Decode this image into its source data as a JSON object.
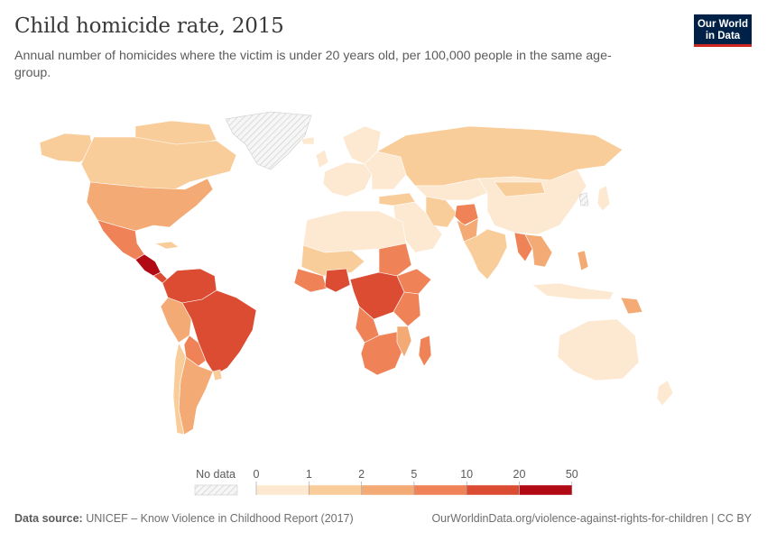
{
  "header": {
    "title": "Child homicide rate, 2015",
    "subtitle": "Annual number of homicides where the victim is under 20 years old, per 100,000 people in the same age-group.",
    "logo_line1": "Our World",
    "logo_line2": "in Data"
  },
  "map": {
    "type": "choropleth",
    "year": 2015,
    "nodata_pattern": "diagonal-hatch",
    "ocean_color": "#ffffff"
  },
  "legend": {
    "nodata_label": "No data",
    "bins": [
      {
        "from": 0,
        "to": 1,
        "color": "#fde9d1"
      },
      {
        "from": 1,
        "to": 2,
        "color": "#f9cd9a"
      },
      {
        "from": 2,
        "to": 5,
        "color": "#f4aa74"
      },
      {
        "from": 5,
        "to": 10,
        "color": "#ef8257"
      },
      {
        "from": 10,
        "to": 20,
        "color": "#dc4c33"
      },
      {
        "from": 20,
        "to": 50,
        "color": "#b10a14"
      }
    ],
    "tick_labels": [
      "0",
      "1",
      "2",
      "5",
      "10",
      "20",
      "50"
    ]
  },
  "footer": {
    "source_label": "Data source:",
    "source_text": "UNICEF – Know Violence in Childhood Report (2017)",
    "url_text": "OurWorldinData.org/violence-against-rights-for-children | CC BY"
  }
}
